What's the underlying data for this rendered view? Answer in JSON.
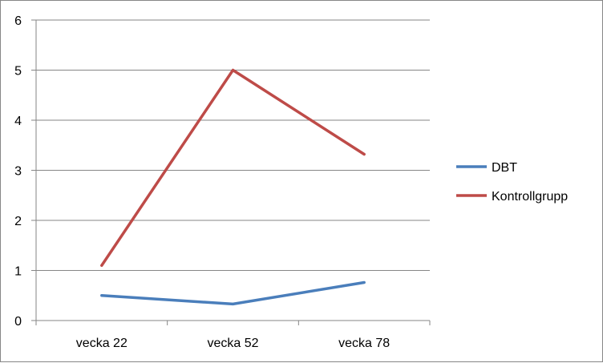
{
  "chart_data": {
    "type": "line",
    "categories": [
      "vecka 22",
      "vecka 52",
      "vecka 78"
    ],
    "series": [
      {
        "name": "DBT",
        "values": [
          0.5,
          0.33,
          0.76
        ],
        "color": "#4a7ebb"
      },
      {
        "name": "Kontrollgrupp",
        "values": [
          1.1,
          5.0,
          3.32
        ],
        "color": "#be4b48"
      }
    ],
    "y_ticks": [
      "0",
      "1",
      "2",
      "3",
      "4",
      "5",
      "6"
    ],
    "ylim": [
      0,
      6
    ],
    "grid": true,
    "legend_position": "right",
    "title": "",
    "xlabel": "",
    "ylabel": ""
  }
}
